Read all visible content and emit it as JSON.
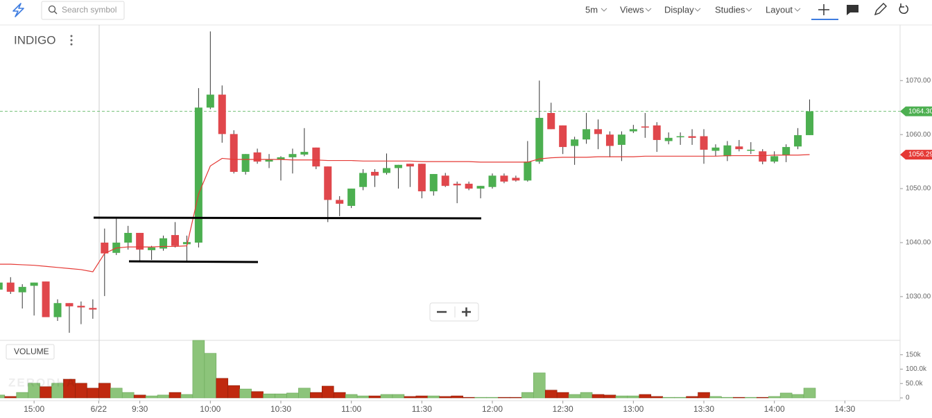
{
  "toolbar": {
    "search_placeholder": "Search symbol",
    "interval": "5m",
    "menus": [
      "Views",
      "Display",
      "Studies",
      "Layout"
    ]
  },
  "chart_data": {
    "type": "candlestick",
    "symbol": "INDIGO",
    "watermark": "ZERODHA",
    "up_color": "#4caf50",
    "down_color": "#e0474c",
    "open": [
      1031.3,
      1032.6,
      1030.8,
      1032.0,
      1032.8,
      1026.2,
      1028.8,
      1028.3,
      1027.9,
      1040.0,
      1038.1,
      1040.0,
      1041.8,
      1038.6,
      1038.9,
      1041.4,
      1039.7,
      1040.0,
      1065.0,
      1067.4,
      1060.1,
      1053.1,
      1056.7,
      1055.0,
      1055.4,
      1055.8,
      1056.3,
      1057.6,
      1054.1,
      1047.9,
      1046.8,
      1050.3,
      1053.1,
      1052.9,
      1053.8,
      1054.6,
      1054.6,
      1049.5,
      1052.4,
      1050.9,
      1050.9,
      1050.0,
      1050.3,
      1052.4,
      1052.0,
      1051.5,
      1055.0,
      1064.0,
      1061.7,
      1057.9,
      1059.1,
      1061.0,
      1060.0,
      1058.1,
      1060.6,
      1061.5,
      1061.7,
      1058.8,
      1059.5,
      1059.7,
      1059.7,
      1057.0,
      1056.0,
      1057.8,
      1057.0,
      1056.9,
      1055.0,
      1056.2,
      1057.8,
      1059.9
    ],
    "high": [
      1033.0,
      1033.6,
      1032.3,
      1032.6,
      1032.8,
      1029.5,
      1028.8,
      1029.1,
      1029.5,
      1042.6,
      1044.6,
      1043.1,
      1041.8,
      1039.4,
      1041.3,
      1043.8,
      1041.3,
      1068.6,
      1079.1,
      1069.1,
      1060.8,
      1056.4,
      1057.4,
      1056.4,
      1056.0,
      1057.4,
      1061.2,
      1057.6,
      1054.1,
      1048.6,
      1050.0,
      1053.6,
      1053.6,
      1056.5,
      1054.4,
      1054.6,
      1054.6,
      1052.7,
      1052.9,
      1051.3,
      1051.3,
      1050.5,
      1052.8,
      1052.8,
      1052.4,
      1058.8,
      1070.0,
      1065.9,
      1061.7,
      1059.6,
      1064.0,
      1062.8,
      1060.6,
      1060.6,
      1061.8,
      1064.0,
      1062.3,
      1060.4,
      1060.4,
      1061.0,
      1061.0,
      1058.2,
      1058.8,
      1059.0,
      1058.6,
      1057.3,
      1056.9,
      1058.2,
      1061.2,
      1066.5
    ],
    "low": [
      1031.0,
      1030.5,
      1027.8,
      1026.5,
      1026.2,
      1025.5,
      1023.3,
      1024.9,
      1025.9,
      1030.1,
      1037.7,
      1038.7,
      1036.4,
      1036.8,
      1038.5,
      1039.1,
      1036.4,
      1039.1,
      1064.7,
      1058.5,
      1052.8,
      1052.6,
      1054.6,
      1053.8,
      1051.5,
      1052.8,
      1056.0,
      1053.6,
      1043.8,
      1044.9,
      1046.4,
      1049.7,
      1050.3,
      1052.6,
      1050.0,
      1050.3,
      1048.2,
      1048.7,
      1050.3,
      1047.3,
      1049.7,
      1048.2,
      1050.0,
      1051.0,
      1051.3,
      1051.3,
      1054.6,
      1061.0,
      1056.4,
      1054.4,
      1058.3,
      1057.3,
      1055.8,
      1055.1,
      1060.3,
      1059.4,
      1056.8,
      1058.2,
      1058.1,
      1058.1,
      1054.6,
      1056.0,
      1055.1,
      1056.9,
      1056.4,
      1054.5,
      1054.7,
      1054.9,
      1057.3,
      1059.9
    ],
    "close": [
      1032.6,
      1030.9,
      1031.8,
      1032.6,
      1026.2,
      1028.8,
      1028.2,
      1028.0,
      1027.6,
      1038.0,
      1040.0,
      1041.8,
      1038.7,
      1039.1,
      1040.8,
      1039.4,
      1040.1,
      1065.0,
      1067.4,
      1060.1,
      1053.1,
      1056.4,
      1055.0,
      1055.4,
      1055.8,
      1056.4,
      1056.8,
      1054.1,
      1047.9,
      1047.2,
      1050.0,
      1052.9,
      1052.4,
      1053.8,
      1054.4,
      1054.1,
      1049.5,
      1052.7,
      1050.5,
      1050.6,
      1050.0,
      1050.5,
      1052.4,
      1051.3,
      1051.5,
      1055.0,
      1063.1,
      1061.0,
      1057.7,
      1059.1,
      1061.0,
      1060.1,
      1057.9,
      1060.0,
      1061.0,
      1061.3,
      1059.0,
      1059.4,
      1059.7,
      1059.4,
      1057.2,
      1057.6,
      1058.0,
      1057.3,
      1057.2,
      1055.0,
      1056.0,
      1057.7,
      1059.9,
      1064.3
    ],
    "overlay": {
      "color": "#e53935",
      "values": [
        1036.0,
        1036.0,
        1035.9,
        1035.8,
        1035.6,
        1035.4,
        1035.2,
        1035.0,
        1034.6,
        1038.0,
        1039.0,
        1039.2,
        1039.2,
        1039.2,
        1039.3,
        1039.3,
        1039.4,
        1049.0,
        1054.2,
        1055.6,
        1055.4,
        1055.4,
        1055.4,
        1055.4,
        1055.4,
        1055.3,
        1055.3,
        1055.3,
        1055.2,
        1055.2,
        1055.2,
        1055.1,
        1055.1,
        1055.1,
        1055.1,
        1055.1,
        1055.0,
        1055.0,
        1055.0,
        1055.0,
        1055.0,
        1054.9,
        1054.9,
        1054.9,
        1054.9,
        1054.9,
        1055.5,
        1055.7,
        1055.8,
        1055.8,
        1055.8,
        1055.9,
        1055.9,
        1055.9,
        1055.9,
        1056.0,
        1056.0,
        1056.0,
        1056.0,
        1056.0,
        1056.0,
        1056.0,
        1056.1,
        1056.1,
        1056.1,
        1056.1,
        1056.2,
        1056.2,
        1056.2,
        1056.3
      ]
    },
    "last_price": {
      "value": 1064.3,
      "label": "1064.30",
      "color": "#4caf50"
    },
    "overlay_last": {
      "value": 1056.29,
      "label": "1056.29"
    },
    "xlim": [
      0.1,
      76.7
    ],
    "xticks": [
      {
        "value": 3,
        "label": "15:00"
      },
      {
        "value": 8.5,
        "label": "6/22"
      },
      {
        "value": 12,
        "label": "9:30"
      },
      {
        "value": 18,
        "label": "10:00"
      },
      {
        "value": 24,
        "label": "10:30"
      },
      {
        "value": 30,
        "label": "11:00"
      },
      {
        "value": 36,
        "label": "11:30"
      },
      {
        "value": 42,
        "label": "12:00"
      },
      {
        "value": 48,
        "label": "12:30"
      },
      {
        "value": 54,
        "label": "13:00"
      },
      {
        "value": 60,
        "label": "13:30"
      },
      {
        "value": 66,
        "label": "14:00"
      },
      {
        "value": 72,
        "label": "14:30"
      }
    ],
    "ylim": [
      1021.9,
      1080.3
    ],
    "yticks": [
      {
        "value": 1030,
        "label": "1030.00"
      },
      {
        "value": 1040,
        "label": "1040.00"
      },
      {
        "value": 1050,
        "label": "1050.00"
      },
      {
        "value": 1060,
        "label": "1060.00"
      },
      {
        "value": 1070,
        "label": "1070.00"
      }
    ],
    "volume": {
      "label": "VOLUME",
      "up_color": "#8cc47a",
      "down_color": "#c0290f",
      "values": [
        10000,
        5000,
        19000,
        51000,
        39000,
        51000,
        65000,
        51000,
        34000,
        51000,
        34000,
        19000,
        10000,
        7000,
        10000,
        19000,
        12000,
        200000,
        155000,
        68000,
        43000,
        31000,
        22000,
        14000,
        14000,
        17000,
        34000,
        19000,
        41000,
        19000,
        12000,
        7000,
        7000,
        12000,
        12000,
        5000,
        7000,
        7000,
        5000,
        7000,
        2000,
        2000,
        2000,
        2000,
        2000,
        19000,
        87000,
        27000,
        19000,
        12000,
        19000,
        12000,
        10000,
        7000,
        7000,
        12000,
        5000,
        2000,
        2000,
        5000,
        19000,
        5000,
        2000,
        2000,
        2000,
        2000,
        5000,
        17000,
        12000,
        34000
      ],
      "ylim": [
        0,
        200000
      ],
      "yticks": [
        0,
        {
          "value": 50000,
          "label": "50.0k"
        },
        {
          "value": 100000,
          "label": "100.0k"
        },
        {
          "value": 150000,
          "label": "150k"
        }
      ]
    }
  }
}
